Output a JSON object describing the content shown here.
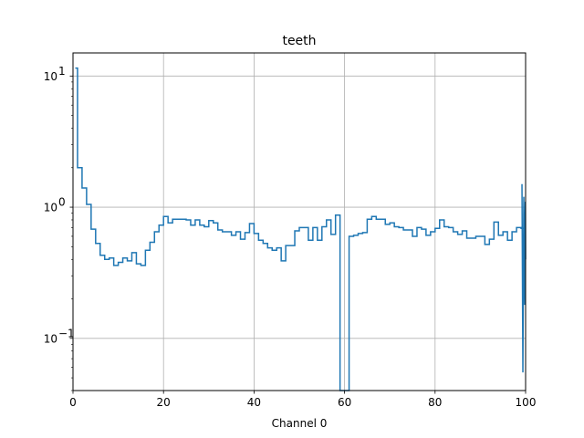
{
  "chart_data": {
    "type": "line",
    "drawstyle": "steps-mid",
    "title": "teeth",
    "xlabel": "Channel 0",
    "ylabel": "",
    "xlim": [
      0,
      100
    ],
    "ylim": [
      0.04,
      15
    ],
    "yscale": "log",
    "grid": true,
    "x_ticks": [
      0,
      20,
      40,
      60,
      80,
      100
    ],
    "x_tick_labels": [
      "0",
      "20",
      "40",
      "60",
      "80",
      "100"
    ],
    "y_ticks": [
      0.1,
      1,
      10
    ],
    "y_tick_labels": [
      "10",
      "10",
      "10"
    ],
    "y_tick_exponents": [
      "−1",
      "0",
      "1"
    ],
    "line_color": "#1f77b4",
    "series": [
      {
        "x": [
          0.5,
          1.5,
          2.5,
          3.5,
          4.5,
          5.5,
          6.5,
          7.5,
          8.5,
          9.5,
          10.5,
          11.5,
          12.5,
          13.5,
          14.5,
          15.5,
          16.5,
          17.5,
          18.5,
          19.5,
          20.5,
          21.5,
          22.5,
          23.5,
          24.5,
          25.5,
          26.5,
          27.5,
          28.5,
          29.5,
          30.5,
          31.5,
          32.5,
          33.5,
          34.5,
          35.5,
          36.5,
          37.5,
          38.5,
          39.5,
          40.5,
          41.5,
          42.5,
          43.5,
          44.5,
          45.5,
          46.5,
          47.5,
          48.5,
          49.5,
          50.5,
          51.5,
          52.5,
          53.5,
          54.5,
          55.5,
          56.5,
          57.5,
          58.5,
          59.5,
          60.5,
          61.5,
          62.5,
          63.5,
          64.5,
          65.5,
          66.5,
          67.5,
          68.5,
          69.5,
          70.5,
          71.5,
          72.5,
          73.5,
          74.5,
          75.5,
          76.5,
          77.5,
          78.5,
          79.5,
          80.5,
          81.5,
          82.5,
          83.5,
          84.5,
          85.5,
          86.5,
          87.5,
          88.5,
          89.5,
          90.5,
          91.5,
          92.5,
          93.5,
          94.5,
          95.5,
          96.5,
          97.5,
          98.5,
          99.5
        ],
        "y": [
          11.5,
          2.0,
          1.4,
          1.05,
          0.68,
          0.53,
          0.43,
          0.4,
          0.41,
          0.36,
          0.38,
          0.41,
          0.39,
          0.45,
          0.37,
          0.36,
          0.47,
          0.54,
          0.65,
          0.73,
          0.85,
          0.76,
          0.81,
          0.81,
          0.81,
          0.8,
          0.73,
          0.8,
          0.73,
          0.71,
          0.79,
          0.76,
          0.67,
          0.65,
          0.65,
          0.61,
          0.65,
          0.57,
          0.64,
          0.75,
          0.63,
          0.56,
          0.53,
          0.49,
          0.47,
          0.49,
          0.39,
          0.51,
          0.51,
          0.66,
          0.7,
          0.7,
          0.56,
          0.7,
          0.56,
          0.71,
          0.8,
          0.62,
          0.87,
          0.001,
          0.001,
          0.6,
          0.61,
          0.63,
          0.64,
          0.81,
          0.85,
          0.81,
          0.81,
          0.74,
          0.76,
          0.71,
          0.7,
          0.67,
          0.67,
          0.6,
          0.7,
          0.68,
          0.61,
          0.65,
          0.69,
          0.8,
          0.71,
          0.7,
          0.65,
          0.62,
          0.66,
          0.58,
          0.58,
          0.6,
          0.6,
          0.52,
          0.57,
          0.77,
          0.61,
          0.65,
          0.56,
          0.65,
          0.7,
          0.69
        ]
      }
    ],
    "edge_spikes_at_x_100": [
      1.5,
      0.055,
      1.2,
      0.18,
      1.1,
      0.4
    ]
  }
}
